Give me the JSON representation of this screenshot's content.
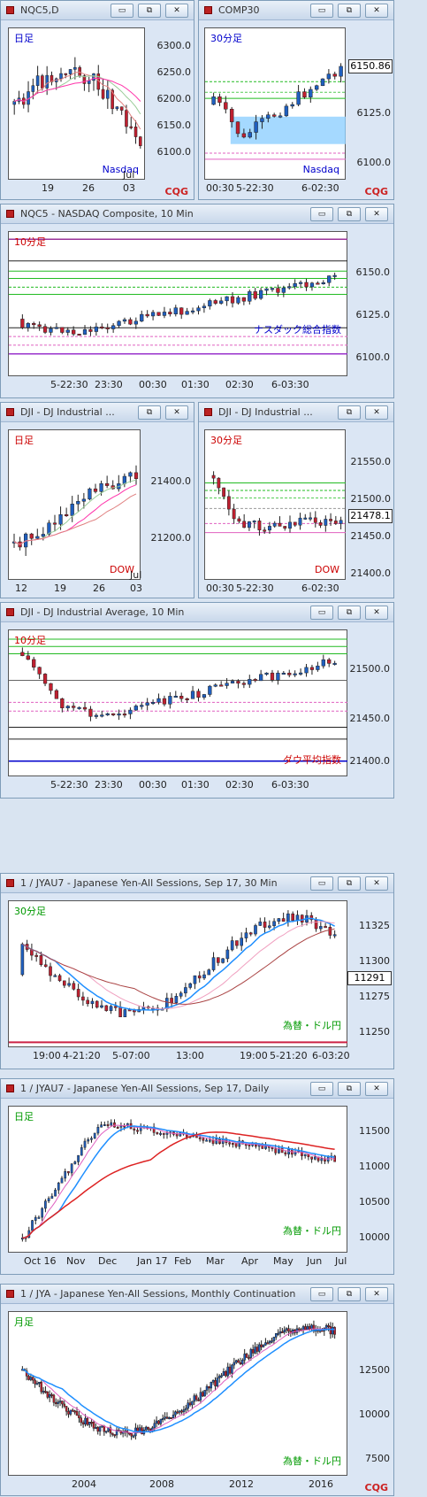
{
  "windows": [
    {
      "key": "w1",
      "title": "NQC5,D",
      "timeframe": "日足",
      "tf_color": "#0000cc",
      "name": "Nasdaq",
      "name_color": "#0000cc",
      "y_labels": [
        "6300.0",
        "6250.0",
        "6200.0",
        "6150.0",
        "6100.0"
      ],
      "x_labels": [
        "19",
        "26",
        "03"
      ],
      "x_sub": "Jul",
      "price": "",
      "brand": "CQG"
    },
    {
      "key": "w2",
      "title": "COMP30",
      "timeframe": "30分足",
      "tf_color": "#0000cc",
      "name": "Nasdaq",
      "name_color": "#0000cc",
      "y_labels": [
        "6150.86",
        "6125.0",
        "6100.0"
      ],
      "x_labels": [
        "00:30",
        "5-22:30",
        "6-02:30"
      ],
      "price": "6150.86",
      "brand": "CQG"
    },
    {
      "key": "w3",
      "title": "NQC5 - NASDAQ Composite, 10 Min",
      "timeframe": "10分足",
      "tf_color": "#cc0000",
      "name": "ナスダック総合指数",
      "name_color": "#0000cc",
      "y_labels": [
        "6150.0",
        "6125.0",
        "6100.0"
      ],
      "x_labels": [
        "5-22:30",
        "23:30",
        "00:30",
        "01:30",
        "02:30",
        "6-03:30"
      ],
      "price": "",
      "brand": ""
    },
    {
      "key": "w4",
      "title": "DJI - DJ Industrial ...",
      "timeframe": "日足",
      "tf_color": "#cc0000",
      "name": "DOW",
      "name_color": "#cc0000",
      "y_labels": [
        "21400.0",
        "21200.0"
      ],
      "x_labels": [
        "12",
        "19",
        "26",
        "03"
      ],
      "x_sub": "Jul",
      "price": "",
      "brand": ""
    },
    {
      "key": "w5",
      "title": "DJI - DJ Industrial ...",
      "timeframe": "30分足",
      "tf_color": "#cc0000",
      "name": "DOW",
      "name_color": "#cc0000",
      "y_labels": [
        "21550.0",
        "21500.0",
        "21478.1",
        "21450.0",
        "21400.0"
      ],
      "x_labels": [
        "00:30",
        "5-22:30",
        "6-02:30"
      ],
      "price": "21478.1",
      "brand": ""
    },
    {
      "key": "w6",
      "title": "DJI - DJ Industrial Average, 10 Min",
      "timeframe": "10分足",
      "tf_color": "#cc0000",
      "name": "ダウ平均指数",
      "name_color": "#cc0000",
      "y_labels": [
        "21500.0",
        "21450.0",
        "21400.0"
      ],
      "x_labels": [
        "5-22:30",
        "23:30",
        "00:30",
        "01:30",
        "02:30",
        "6-03:30"
      ],
      "price": "",
      "brand": ""
    },
    {
      "key": "w7",
      "title": "1 / JYAU7 - Japanese Yen-All Sessions, Sep 17, 30 Min",
      "timeframe": "30分足",
      "tf_color": "#009900",
      "name": "為替・ドル円",
      "name_color": "#009900",
      "y_labels": [
        "11325",
        "11300",
        "11291",
        "11275",
        "11250"
      ],
      "x_labels": [
        "19:00",
        "4-21:20",
        "5-07:00",
        "13:00",
        "19:00",
        "5-21:20",
        "6-03:20"
      ],
      "price": "11291",
      "brand": ""
    },
    {
      "key": "w8",
      "title": "1 / JYAU7 - Japanese Yen-All Sessions, Sep 17, Daily",
      "timeframe": "日足",
      "tf_color": "#009900",
      "name": "為替・ドル円",
      "name_color": "#009900",
      "y_labels": [
        "11500",
        "11000",
        "10500",
        "10000"
      ],
      "x_labels": [
        "Oct 16",
        "Nov",
        "Dec",
        "Jan 17",
        "Feb",
        "Mar",
        "Apr",
        "May",
        "Jun",
        "Jul"
      ],
      "price": "",
      "brand": ""
    },
    {
      "key": "w9",
      "title": "1 / JYA - Japanese Yen-All Sessions, Monthly Continuation",
      "timeframe": "月足",
      "tf_color": "#009900",
      "name": "為替・ドル円",
      "name_color": "#009900",
      "y_labels": [
        "12500",
        "10000",
        "7500"
      ],
      "x_labels": [
        "2004",
        "2008",
        "2012",
        "2016"
      ],
      "price": "",
      "brand": "CQG"
    }
  ],
  "controls": {
    "minimize": "▭",
    "restore": "⧉",
    "close": "✕"
  }
}
